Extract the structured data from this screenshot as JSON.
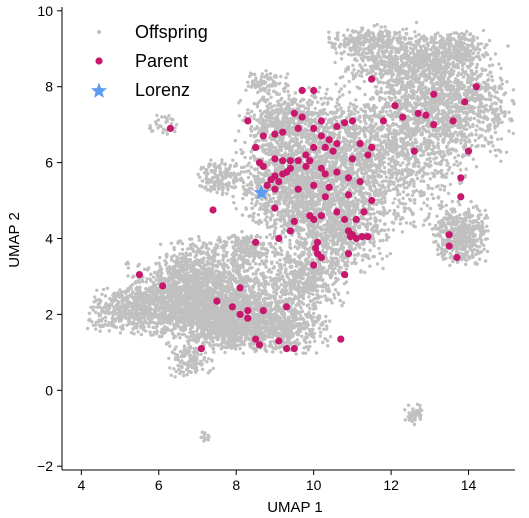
{
  "chart_data": {
    "type": "scatter",
    "title": "",
    "xlabel": "UMAP 1",
    "ylabel": "UMAP 2",
    "xlim": [
      3.5,
      15.2
    ],
    "ylim": [
      -2.1,
      10.1
    ],
    "xticks": [
      4,
      6,
      8,
      10,
      12,
      14
    ],
    "yticks": [
      -2,
      0,
      2,
      4,
      6,
      8,
      10
    ],
    "xtick_labels": [
      "4",
      "6",
      "8",
      "10",
      "12",
      "14"
    ],
    "ytick_labels": [
      "−2",
      "0",
      "2",
      "4",
      "6",
      "8",
      "10"
    ],
    "grid": false,
    "legend_position": "top-left",
    "series": [
      {
        "name": "Offspring",
        "marker": "circle",
        "color": "#c0c0c0",
        "note": "dense cloud of many thousands of points",
        "regions": [
          {
            "cx": 11.2,
            "cy": 6.0,
            "rx": 2.2,
            "ry": 1.6,
            "n": 1800
          },
          {
            "cx": 13.3,
            "cy": 7.6,
            "rx": 1.6,
            "ry": 1.4,
            "n": 1300
          },
          {
            "cx": 12.3,
            "cy": 8.6,
            "rx": 1.4,
            "ry": 0.6,
            "n": 500
          },
          {
            "cx": 9.6,
            "cy": 5.4,
            "rx": 1.4,
            "ry": 1.0,
            "n": 1000
          },
          {
            "cx": 9.3,
            "cy": 7.0,
            "rx": 1.0,
            "ry": 0.7,
            "n": 500
          },
          {
            "cx": 10.4,
            "cy": 4.1,
            "rx": 1.3,
            "ry": 0.9,
            "n": 700
          },
          {
            "cx": 7.6,
            "cy": 2.3,
            "rx": 1.5,
            "ry": 0.9,
            "n": 1500
          },
          {
            "cx": 6.3,
            "cy": 2.4,
            "rx": 1.0,
            "ry": 0.8,
            "n": 700
          },
          {
            "cx": 5.2,
            "cy": 2.1,
            "rx": 0.9,
            "ry": 0.5,
            "n": 400
          },
          {
            "cx": 7.9,
            "cy": 1.6,
            "rx": 1.0,
            "ry": 0.5,
            "n": 500
          },
          {
            "cx": 9.2,
            "cy": 1.7,
            "rx": 1.0,
            "ry": 0.6,
            "n": 500
          },
          {
            "cx": 9.8,
            "cy": 2.9,
            "rx": 0.9,
            "ry": 0.6,
            "n": 400
          },
          {
            "cx": 7.0,
            "cy": 3.3,
            "rx": 0.8,
            "ry": 0.6,
            "n": 300
          },
          {
            "cx": 8.3,
            "cy": 3.7,
            "rx": 0.6,
            "ry": 0.4,
            "n": 200
          },
          {
            "cx": 7.6,
            "cy": 5.6,
            "rx": 0.5,
            "ry": 0.4,
            "n": 150
          },
          {
            "cx": 6.8,
            "cy": 0.8,
            "rx": 0.5,
            "ry": 0.4,
            "n": 120
          },
          {
            "cx": 13.8,
            "cy": 4.1,
            "rx": 0.6,
            "ry": 0.7,
            "n": 450
          },
          {
            "cx": 11.5,
            "cy": 9.2,
            "rx": 1.1,
            "ry": 0.35,
            "n": 250
          },
          {
            "cx": 13.6,
            "cy": 9.0,
            "rx": 0.7,
            "ry": 0.4,
            "n": 200
          },
          {
            "cx": 8.8,
            "cy": 8.1,
            "rx": 0.5,
            "ry": 0.3,
            "n": 80
          },
          {
            "cx": 12.6,
            "cy": -0.6,
            "rx": 0.2,
            "ry": 0.25,
            "n": 40
          },
          {
            "cx": 6.1,
            "cy": 7.0,
            "rx": 0.35,
            "ry": 0.25,
            "n": 30
          },
          {
            "cx": 7.2,
            "cy": -1.2,
            "rx": 0.1,
            "ry": 0.2,
            "n": 12
          }
        ]
      },
      {
        "name": "Parent",
        "marker": "circle",
        "color": "#c8176c",
        "points": [
          [
            11.5,
            8.2
          ],
          [
            12.1,
            7.5
          ],
          [
            14.2,
            8.0
          ],
          [
            13.1,
            7.8
          ],
          [
            13.9,
            7.6
          ],
          [
            11.8,
            7.1
          ],
          [
            12.3,
            7.2
          ],
          [
            11.0,
            7.1
          ],
          [
            10.8,
            7.05
          ],
          [
            10.6,
            6.95
          ],
          [
            12.7,
            7.3
          ],
          [
            12.9,
            7.25
          ],
          [
            13.1,
            7.0
          ],
          [
            13.6,
            7.1
          ],
          [
            12.6,
            6.3
          ],
          [
            14.0,
            6.3
          ],
          [
            13.8,
            5.6
          ],
          [
            10.0,
            7.9
          ],
          [
            9.7,
            7.9
          ],
          [
            9.5,
            7.3
          ],
          [
            9.7,
            7.2
          ],
          [
            10.2,
            7.1
          ],
          [
            10.0,
            6.9
          ],
          [
            9.2,
            6.8
          ],
          [
            9.0,
            6.75
          ],
          [
            8.7,
            6.7
          ],
          [
            8.5,
            6.4
          ],
          [
            10.2,
            6.7
          ],
          [
            10.4,
            6.6
          ],
          [
            10.3,
            6.4
          ],
          [
            10.6,
            6.5
          ],
          [
            11.2,
            6.5
          ],
          [
            11.5,
            6.4
          ],
          [
            11.4,
            6.2
          ],
          [
            11.0,
            6.1
          ],
          [
            10.5,
            6.3
          ],
          [
            10.0,
            6.4
          ],
          [
            9.8,
            6.2
          ],
          [
            9.9,
            6.05
          ],
          [
            9.6,
            6.05
          ],
          [
            9.4,
            6.05
          ],
          [
            9.2,
            6.05
          ],
          [
            9.0,
            6.1
          ],
          [
            9.4,
            5.85
          ],
          [
            9.3,
            5.75
          ],
          [
            9.2,
            5.7
          ],
          [
            9.0,
            5.65
          ],
          [
            8.9,
            5.55
          ],
          [
            9.1,
            5.5
          ],
          [
            8.8,
            5.4
          ],
          [
            9.0,
            5.3
          ],
          [
            9.8,
            5.9
          ],
          [
            10.2,
            5.85
          ],
          [
            10.3,
            5.7
          ],
          [
            10.6,
            5.75
          ],
          [
            10.9,
            5.6
          ],
          [
            11.2,
            5.5
          ],
          [
            10.9,
            5.15
          ],
          [
            10.4,
            5.35
          ],
          [
            10.0,
            5.4
          ],
          [
            9.6,
            5.3
          ],
          [
            10.3,
            5.1
          ],
          [
            9.9,
            4.6
          ],
          [
            10.0,
            4.5
          ],
          [
            10.2,
            4.6
          ],
          [
            10.6,
            4.7
          ],
          [
            10.8,
            4.5
          ],
          [
            11.3,
            4.7
          ],
          [
            11.1,
            4.5
          ],
          [
            10.9,
            4.2
          ],
          [
            10.95,
            4.05
          ],
          [
            11.1,
            4.0
          ],
          [
            11.25,
            4.05
          ],
          [
            11.4,
            4.05
          ],
          [
            11.0,
            4.1
          ],
          [
            11.5,
            5.0
          ],
          [
            9.4,
            4.2
          ],
          [
            9.1,
            4.0
          ],
          [
            9.0,
            4.8
          ],
          [
            9.5,
            4.45
          ],
          [
            10.1,
            3.9
          ],
          [
            10.05,
            3.75
          ],
          [
            10.1,
            3.6
          ],
          [
            10.9,
            3.6
          ],
          [
            10.8,
            3.05
          ],
          [
            10.2,
            3.5
          ],
          [
            10.0,
            3.3
          ],
          [
            8.5,
            3.9
          ],
          [
            8.3,
            7.1
          ],
          [
            8.6,
            6.0
          ],
          [
            9.6,
            6.9
          ],
          [
            8.7,
            5.9
          ],
          [
            13.8,
            5.1
          ],
          [
            13.5,
            4.1
          ],
          [
            13.5,
            3.8
          ],
          [
            13.7,
            3.5
          ],
          [
            6.3,
            6.9
          ],
          [
            7.4,
            4.75
          ],
          [
            5.5,
            3.05
          ],
          [
            6.1,
            2.75
          ],
          [
            7.5,
            2.35
          ],
          [
            7.9,
            2.2
          ],
          [
            8.3,
            2.1
          ],
          [
            8.7,
            2.1
          ],
          [
            8.1,
            2.0
          ],
          [
            8.3,
            1.9
          ],
          [
            8.5,
            1.35
          ],
          [
            8.6,
            1.2
          ],
          [
            9.1,
            1.3
          ],
          [
            9.3,
            1.1
          ],
          [
            9.5,
            1.1
          ],
          [
            10.7,
            1.35
          ],
          [
            7.1,
            1.1
          ],
          [
            8.1,
            2.7
          ],
          [
            9.3,
            2.2
          ]
        ]
      },
      {
        "name": "Lorenz",
        "marker": "star",
        "color": "#5b9bf0",
        "points": [
          [
            8.65,
            5.2
          ]
        ]
      }
    ]
  }
}
